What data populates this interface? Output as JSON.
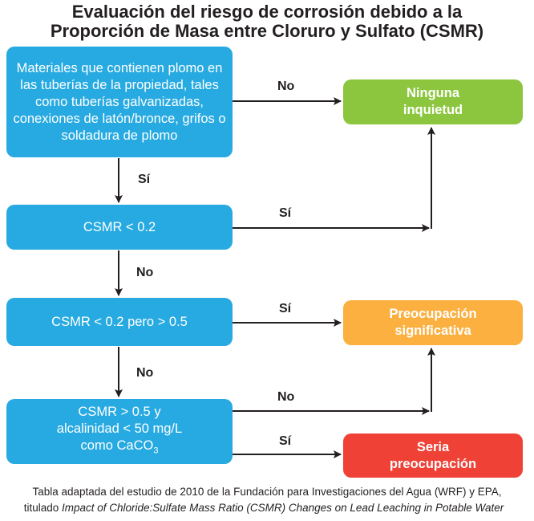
{
  "title": {
    "line1": "Evaluación del riesgo de corrosión debido a la",
    "line2": "Proporción de Masa entre Cloruro y Sulfato (CSMR)"
  },
  "boxes": {
    "lead_materials": "Materiales que contienen plomo en las tuberías de la propiedad, tales como tuberías galvanizadas, conexiones de latón/bronce, grifos o soldadura de plomo",
    "csmr_lt_02": "CSMR < 0.2",
    "csmr_between": "CSMR < 0.2 pero > 0.5",
    "csmr_alk_line1": "CSMR > 0.5 y",
    "csmr_alk_line2": "alcalinidad < 50 mg/L",
    "csmr_alk_line3": "como CaCO",
    "csmr_alk_sub": "3"
  },
  "outcomes": {
    "none": "Ninguna inquietud",
    "significant": "Preocupación significativa",
    "serious": "Seria preocupación"
  },
  "colors": {
    "decision": "#27aae1",
    "none": "#8cc63f",
    "significant": "#fbb040",
    "serious": "#ef4136"
  },
  "labels": {
    "yes": "Sí",
    "no": "No"
  },
  "caption": {
    "line1": "Tabla adaptada del estudio de 2010 de la Fundación para Investigaciones del Agua (WRF) y EPA,",
    "line2_prefix": "titulado ",
    "line2_title": "Impact of Chloride:Sulfate Mass Ratio (CSMR) Changes on Lead Leaching in Potable Water"
  }
}
